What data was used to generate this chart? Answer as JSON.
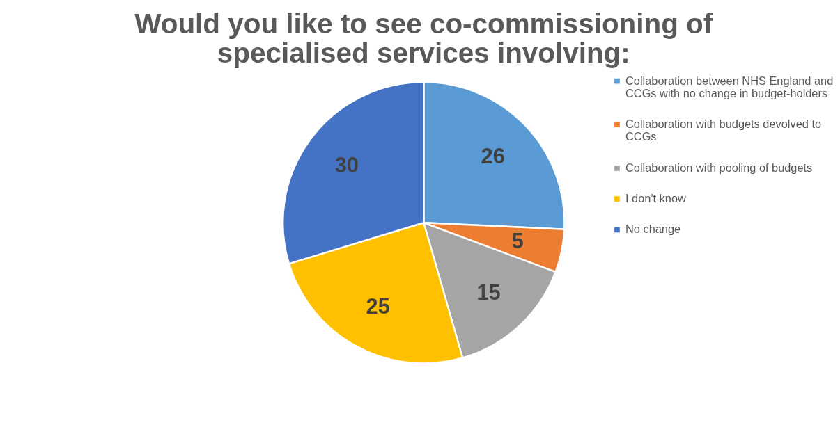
{
  "chart_data": {
    "type": "pie",
    "title": "Would you like to see co-commissioning of specialised services involving:",
    "categories": [
      "Collaboration between NHS England and CCGs with no change in budget-holders",
      "Collaboration with budgets devolved to CCGs",
      "Collaboration with pooling of budgets",
      "I don't know",
      "No change"
    ],
    "values": [
      26,
      5,
      15,
      25,
      30
    ],
    "colors": [
      "#5b9bd5",
      "#ed7d31",
      "#a5a5a5",
      "#ffc000",
      "#4472c4"
    ],
    "data_labels": true,
    "legend": "right"
  }
}
